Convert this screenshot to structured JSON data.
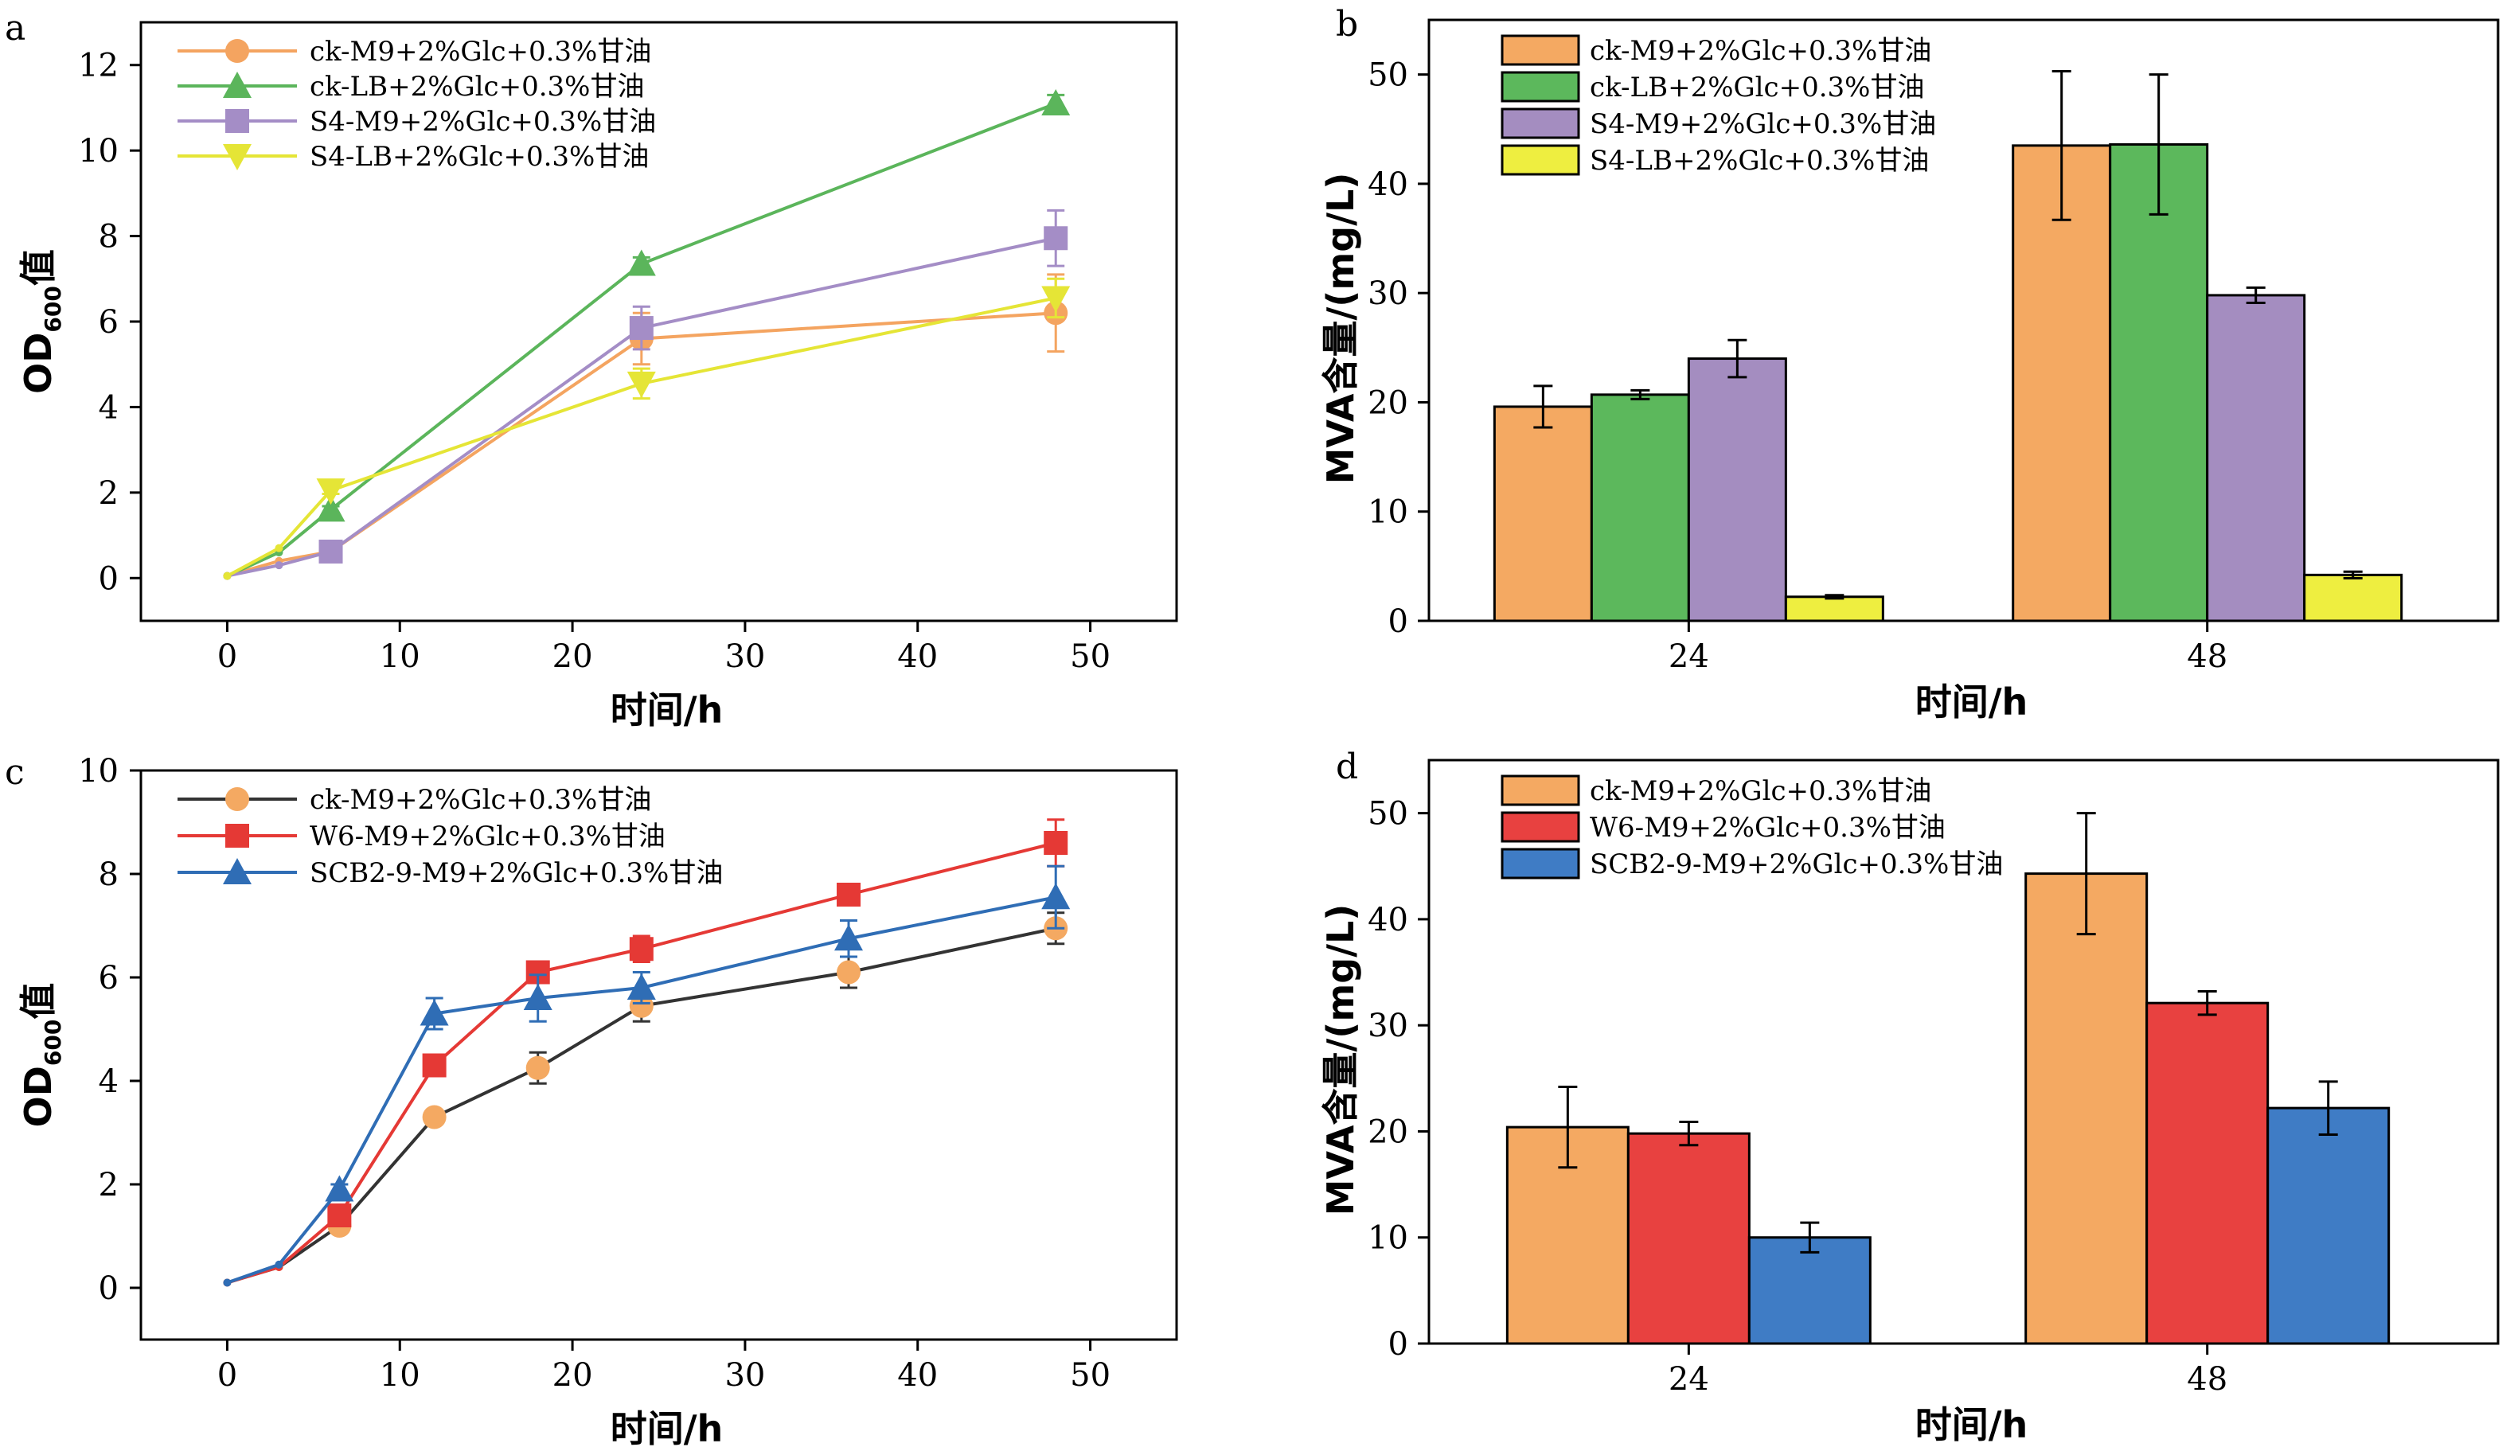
{
  "figure": {
    "panels": [
      "a",
      "b",
      "c",
      "d"
    ]
  },
  "chart_data": [
    {
      "id": "a",
      "type": "line",
      "panel_label": "a",
      "xlabel": "时间/h",
      "ylabel": "OD600值",
      "ylabel_main": "OD",
      "ylabel_sub": "600",
      "ylabel_suffix": "值",
      "xlim": [
        -5,
        55
      ],
      "ylim": [
        -1,
        13
      ],
      "xticks": [
        0,
        10,
        20,
        30,
        40,
        50
      ],
      "yticks": [
        0,
        2,
        4,
        6,
        8,
        10,
        12
      ],
      "legend_position": "top-left",
      "series": [
        {
          "name": "ck-M9+2%Glc+0.3%甘油",
          "color": "#F4A460",
          "marker": "circle",
          "x": [
            0,
            3,
            6,
            24,
            48
          ],
          "y": [
            0.05,
            0.4,
            0.62,
            5.6,
            6.2
          ],
          "err": [
            0.02,
            0.05,
            0.08,
            0.6,
            0.9
          ]
        },
        {
          "name": "ck-LB+2%Glc+0.3%甘油",
          "color": "#5BB55B",
          "marker": "triangle-up",
          "x": [
            0,
            3,
            6,
            24,
            48
          ],
          "y": [
            0.05,
            0.6,
            1.6,
            7.35,
            11.1
          ],
          "err": [
            0.02,
            0.05,
            0.08,
            0.15,
            0.2
          ]
        },
        {
          "name": "S4-M9+2%Glc+0.3%甘油",
          "color": "#A48DC6",
          "marker": "square",
          "x": [
            0,
            3,
            6,
            24,
            48
          ],
          "y": [
            0.05,
            0.3,
            0.62,
            5.85,
            7.95
          ],
          "err": [
            0.02,
            0.05,
            0.08,
            0.5,
            0.65
          ]
        },
        {
          "name": "S4-LB+2%Glc+0.3%甘油",
          "color": "#E5E536",
          "marker": "triangle-down",
          "x": [
            0,
            3,
            6,
            24,
            48
          ],
          "y": [
            0.05,
            0.7,
            2.05,
            4.55,
            6.55
          ],
          "err": [
            0.02,
            0.05,
            0.08,
            0.35,
            0.45
          ]
        }
      ]
    },
    {
      "id": "b",
      "type": "bar",
      "panel_label": "b",
      "xlabel": "时间/h",
      "ylabel": "MVA含量/(mg/L)",
      "ylim": [
        0,
        55
      ],
      "yticks": [
        0,
        10,
        20,
        30,
        40,
        50
      ],
      "categories": [
        "24",
        "48"
      ],
      "legend_position": "top-left",
      "series": [
        {
          "name": "ck-M9+2%Glc+0.3%甘油",
          "color": "#F4A962",
          "values": [
            19.6,
            43.5
          ],
          "err": [
            1.9,
            6.8
          ]
        },
        {
          "name": "ck-LB+2%Glc+0.3%甘油",
          "color": "#5CB85C",
          "values": [
            20.7,
            43.6
          ],
          "err": [
            0.4,
            6.4
          ]
        },
        {
          "name": "S4-M9+2%Glc+0.3%甘油",
          "color": "#A48DC0",
          "values": [
            24.0,
            29.8
          ],
          "err": [
            1.7,
            0.7
          ]
        },
        {
          "name": "S4-LB+2%Glc+0.3%甘油",
          "color": "#EEEE40",
          "values": [
            2.2,
            4.2
          ],
          "err": [
            0.15,
            0.3
          ]
        }
      ]
    },
    {
      "id": "c",
      "type": "line",
      "panel_label": "c",
      "xlabel": "时间/h",
      "ylabel": "OD600值",
      "ylabel_main": "OD",
      "ylabel_sub": "600",
      "ylabel_suffix": "值",
      "xlim": [
        -5,
        55
      ],
      "ylim": [
        -1,
        10
      ],
      "xticks": [
        0,
        10,
        20,
        30,
        40,
        50
      ],
      "yticks": [
        0,
        2,
        4,
        6,
        8,
        10
      ],
      "legend_position": "top-left",
      "series": [
        {
          "name": "ck-M9+2%Glc+0.3%甘油",
          "color": "#F4A962",
          "line_color": "#333333",
          "marker": "circle",
          "x": [
            0,
            3,
            6.5,
            12,
            18,
            24,
            36,
            48
          ],
          "y": [
            0.1,
            0.4,
            1.2,
            3.3,
            4.25,
            5.45,
            6.1,
            6.95
          ],
          "err": [
            0.02,
            0.05,
            0.1,
            0.1,
            0.3,
            0.3,
            0.3,
            0.3
          ]
        },
        {
          "name": "W6-M9+2%Glc+0.3%甘油",
          "color": "#E53935",
          "line_color": "#E53935",
          "marker": "square",
          "x": [
            0,
            3,
            6.5,
            12,
            18,
            24,
            36,
            48
          ],
          "y": [
            0.1,
            0.4,
            1.4,
            4.3,
            6.1,
            6.55,
            7.6,
            8.6
          ],
          "err": [
            0.02,
            0.05,
            0.1,
            0.1,
            0.15,
            0.25,
            0.2,
            0.45
          ]
        },
        {
          "name": "SCB2-9-M9+2%Glc+0.3%甘油",
          "color": "#2F6DB5",
          "line_color": "#2F6DB5",
          "marker": "triangle-up",
          "x": [
            0,
            3,
            6.5,
            12,
            18,
            24,
            36,
            48
          ],
          "y": [
            0.1,
            0.45,
            1.9,
            5.3,
            5.6,
            5.8,
            6.75,
            7.55
          ],
          "err": [
            0.02,
            0.05,
            0.1,
            0.3,
            0.45,
            0.3,
            0.35,
            0.6
          ]
        }
      ]
    },
    {
      "id": "d",
      "type": "bar",
      "panel_label": "d",
      "xlabel": "时间/h",
      "ylabel": "MVA含量/(mg/L)",
      "ylim": [
        0,
        55
      ],
      "yticks": [
        0,
        10,
        20,
        30,
        40,
        50
      ],
      "categories": [
        "24",
        "48"
      ],
      "legend_position": "top-left",
      "series": [
        {
          "name": "ck-M9+2%Glc+0.3%甘油",
          "color": "#F4A962",
          "values": [
            20.4,
            44.3
          ],
          "err": [
            3.8,
            5.7
          ]
        },
        {
          "name": "W6-M9+2%Glc+0.3%甘油",
          "color": "#E84140",
          "values": [
            19.8,
            32.1
          ],
          "err": [
            1.1,
            1.1
          ]
        },
        {
          "name": "SCB2-9-M9+2%Glc+0.3%甘油",
          "color": "#3F7CC5",
          "values": [
            10.0,
            22.2
          ],
          "err": [
            1.4,
            2.5
          ]
        }
      ]
    }
  ]
}
